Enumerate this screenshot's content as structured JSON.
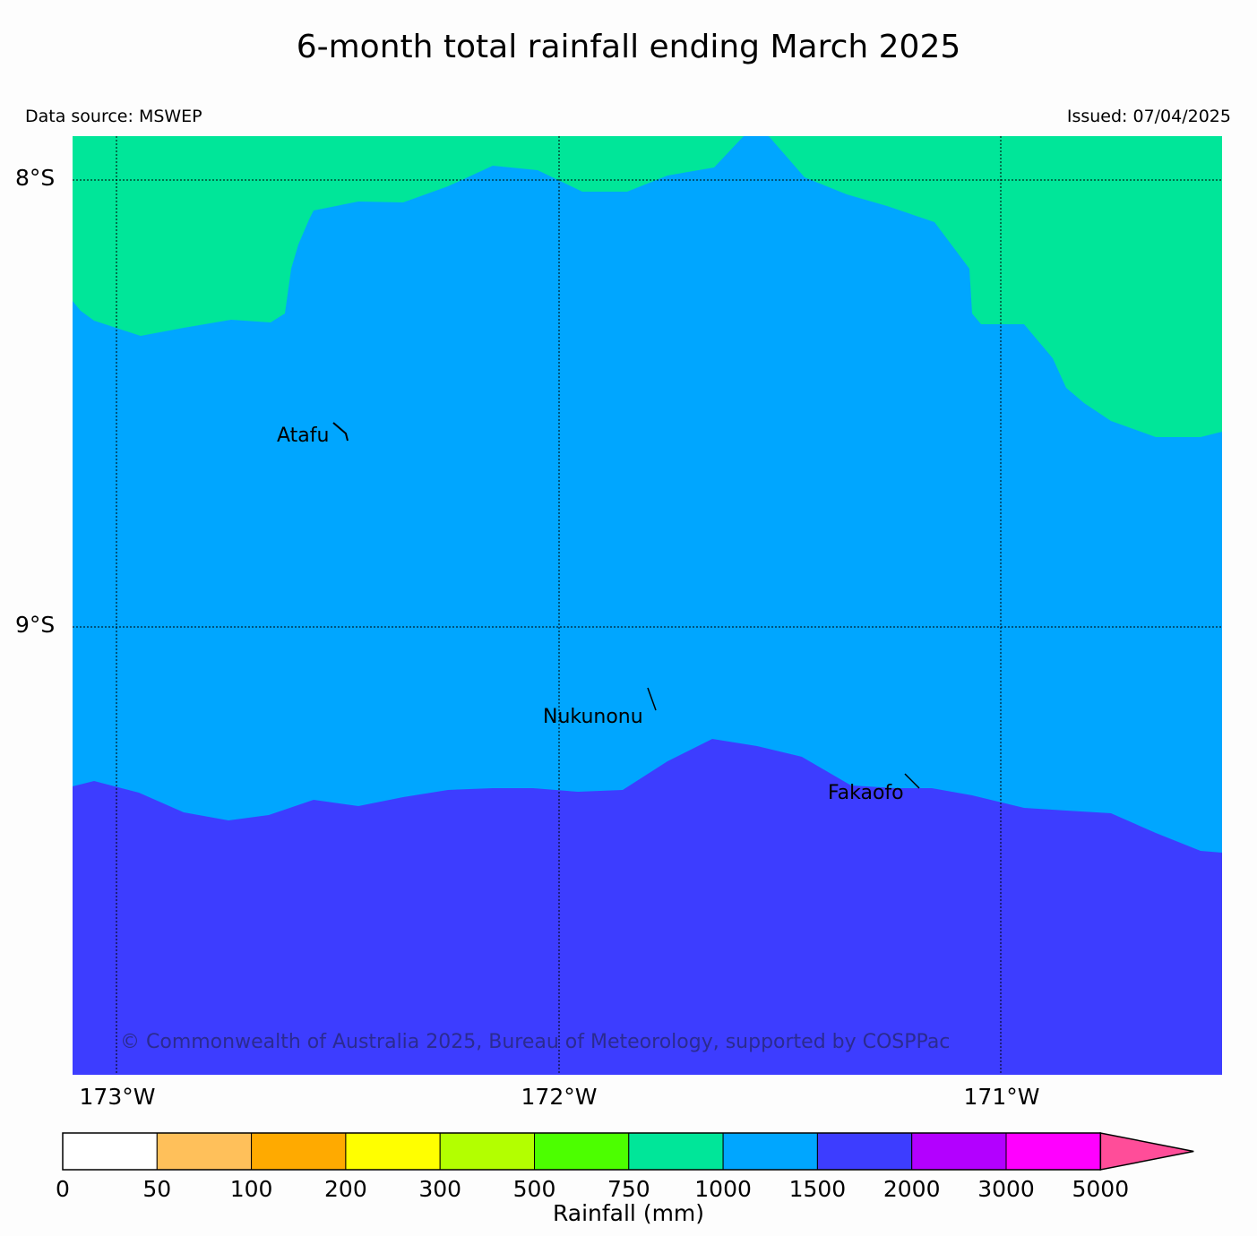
{
  "title": "6-month total rainfall ending March 2025",
  "data_source": "Data source: MSWEP",
  "issued": "Issued: 07/04/2025",
  "copyright": "© Commonwealth of Australia 2025, Bureau of Meteorology, supported by COSPPac",
  "map": {
    "lat_labels": [
      "8°S",
      "9°S"
    ],
    "lon_labels": [
      "173°W",
      "172°W",
      "171°W"
    ],
    "places": [
      "Atafu",
      "Nukunonu",
      "Fakaofo"
    ],
    "zone_colors": {
      "750-1000": "#00e699",
      "1000-1500": "#00a6ff",
      "1500-2000": "#3d3dff"
    }
  },
  "colorbar": {
    "title": "Rainfall (mm)",
    "ticks": [
      "0",
      "50",
      "100",
      "200",
      "300",
      "500",
      "750",
      "1000",
      "1500",
      "2000",
      "3000",
      "5000"
    ],
    "colors": [
      "#ffffff",
      "#ffc05a",
      "#ffaa00",
      "#ffff00",
      "#b3ff00",
      "#4cff00",
      "#00e699",
      "#00a6ff",
      "#3d3dff",
      "#b300ff",
      "#ff00ff"
    ],
    "extend_color": "#ff4d99"
  }
}
